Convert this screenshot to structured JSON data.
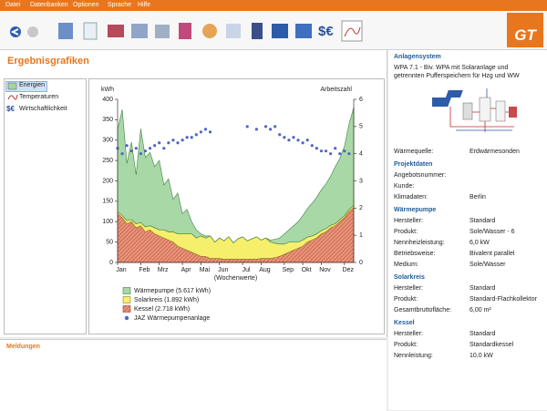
{
  "menu": [
    "Datei",
    "Datenbanken",
    "Optionen",
    "Sprache",
    "Hilfe"
  ],
  "logo": "GT",
  "page_title": "Ergebnisgrafiken",
  "nav": [
    "Energien",
    "Temperaturen",
    "Wirtschaftlichkeit"
  ],
  "messages_title": "Meldungen",
  "chart_data": {
    "type": "area",
    "stacked": true,
    "y_label": "kWh",
    "y2_label": "Arbeitszahl",
    "x_label": "(Wochenwerte)",
    "categories": [
      "Jan",
      null,
      null,
      null,
      null,
      "Feb",
      null,
      null,
      null,
      "Mrz",
      null,
      null,
      null,
      null,
      "Apr",
      null,
      null,
      null,
      "Mai",
      null,
      null,
      null,
      "Jun",
      null,
      null,
      null,
      null,
      "Jul",
      null,
      null,
      null,
      "Aug",
      null,
      null,
      null,
      null,
      "Sep",
      null,
      null,
      null,
      "Okt",
      null,
      null,
      null,
      "Nov",
      null,
      null,
      null,
      null,
      "Dez",
      null,
      null
    ],
    "ylim": [
      0,
      400
    ],
    "yticks": [
      0,
      50,
      100,
      150,
      200,
      250,
      300,
      350,
      400
    ],
    "y2lim": [
      0,
      6
    ],
    "y2ticks": [
      0,
      1,
      2,
      3,
      4,
      5,
      6
    ],
    "series": [
      {
        "name": "Wärmepumpe (5.617 kWh)",
        "color": "#a8d8a6",
        "edge_color": "#3f7f45",
        "values": [
          200,
          260,
          140,
          190,
          120,
          230,
          170,
          180,
          150,
          170,
          110,
          130,
          80,
          100,
          50,
          60,
          30,
          20,
          5,
          5,
          0,
          0,
          0,
          0,
          0,
          0,
          0,
          0,
          0,
          0,
          0,
          0,
          0,
          5,
          10,
          15,
          25,
          30,
          40,
          50,
          60,
          70,
          80,
          90,
          100,
          110,
          120,
          140,
          150,
          170,
          210,
          240
        ]
      },
      {
        "name": "Solarkreis (1.892 kWh)",
        "color": "#f6ef6c",
        "edge_color": "#8a8420",
        "values": [
          5,
          5,
          8,
          5,
          10,
          8,
          12,
          10,
          15,
          15,
          20,
          20,
          25,
          30,
          35,
          40,
          45,
          40,
          50,
          45,
          55,
          40,
          50,
          45,
          55,
          40,
          50,
          55,
          45,
          50,
          55,
          45,
          50,
          40,
          35,
          30,
          25,
          25,
          20,
          15,
          15,
          12,
          10,
          10,
          8,
          8,
          6,
          5,
          5,
          5,
          5,
          5
        ]
      },
      {
        "name": "Kessel (2.718 kWh)",
        "color": "#e8937a",
        "edge_color": "#a33a20",
        "pattern": "hatch",
        "values": [
          120,
          110,
          95,
          100,
          85,
          90,
          75,
          80,
          70,
          65,
          60,
          55,
          50,
          40,
          35,
          30,
          25,
          20,
          15,
          15,
          10,
          10,
          10,
          8,
          8,
          8,
          8,
          8,
          8,
          8,
          8,
          10,
          10,
          10,
          12,
          15,
          20,
          25,
          30,
          35,
          40,
          50,
          55,
          60,
          70,
          75,
          85,
          90,
          100,
          110,
          125,
          135
        ]
      },
      {
        "name": "JAZ Wärmepumpenanlage",
        "color": "#5166c4",
        "axis": "y2",
        "marker": "circle",
        "values": [
          4.2,
          4.0,
          4.3,
          4.1,
          4.2,
          4.0,
          4.1,
          4.2,
          4.3,
          4.4,
          4.2,
          4.4,
          4.5,
          4.4,
          4.5,
          4.6,
          4.6,
          4.7,
          4.8,
          4.9,
          4.8,
          null,
          null,
          null,
          null,
          null,
          null,
          null,
          5.0,
          null,
          4.9,
          null,
          5.0,
          4.9,
          5.0,
          4.7,
          4.6,
          4.5,
          4.6,
          4.5,
          4.4,
          4.5,
          4.3,
          4.2,
          4.1,
          4.1,
          4.0,
          4.2,
          4.0,
          4.1,
          4.0,
          null
        ]
      }
    ]
  },
  "system": {
    "title": "Anlagensystem",
    "description": "WPA 7.1 - Biv. WPA mit Solaranlage und getrennten Pufferspeichern für Hzg und WW",
    "rows": [
      {
        "label": "Wärmequelle:",
        "value": "Erdwärmesonden"
      }
    ],
    "sections": [
      {
        "title": "Projektdaten",
        "rows": [
          {
            "label": "Angebotsnummer:"
          },
          {
            "label": "Kunde:"
          },
          {
            "label": "Klimadaten:",
            "value": "Berlin"
          }
        ]
      },
      {
        "title": "Wärmepumpe",
        "rows": [
          {
            "label": "Hersteller:",
            "value": "Standard"
          },
          {
            "label": "Produkt:",
            "value": "Sole/Wasser - 6"
          },
          {
            "label": "Nennheizleistung:",
            "value": "6,0 kW"
          },
          {
            "label": "Betriebsweise:",
            "value": "Bivalent parallel"
          },
          {
            "label": "Medium:",
            "value": "Sole/Wasser"
          }
        ]
      },
      {
        "title": "Solarkreis",
        "rows": [
          {
            "label": "Hersteller:",
            "value": "Standard"
          },
          {
            "label": "Produkt:",
            "value": "Standard-Flachkollektor"
          },
          {
            "label": "Gesamtbruttofläche:",
            "value": "6,00 m²"
          }
        ]
      },
      {
        "title": "Kessel",
        "rows": [
          {
            "label": "Hersteller:",
            "value": "Standard"
          },
          {
            "label": "Produkt:",
            "value": "Standardkessel"
          },
          {
            "label": "Nennleistung:",
            "value": "10,0 kW"
          }
        ]
      }
    ]
  }
}
